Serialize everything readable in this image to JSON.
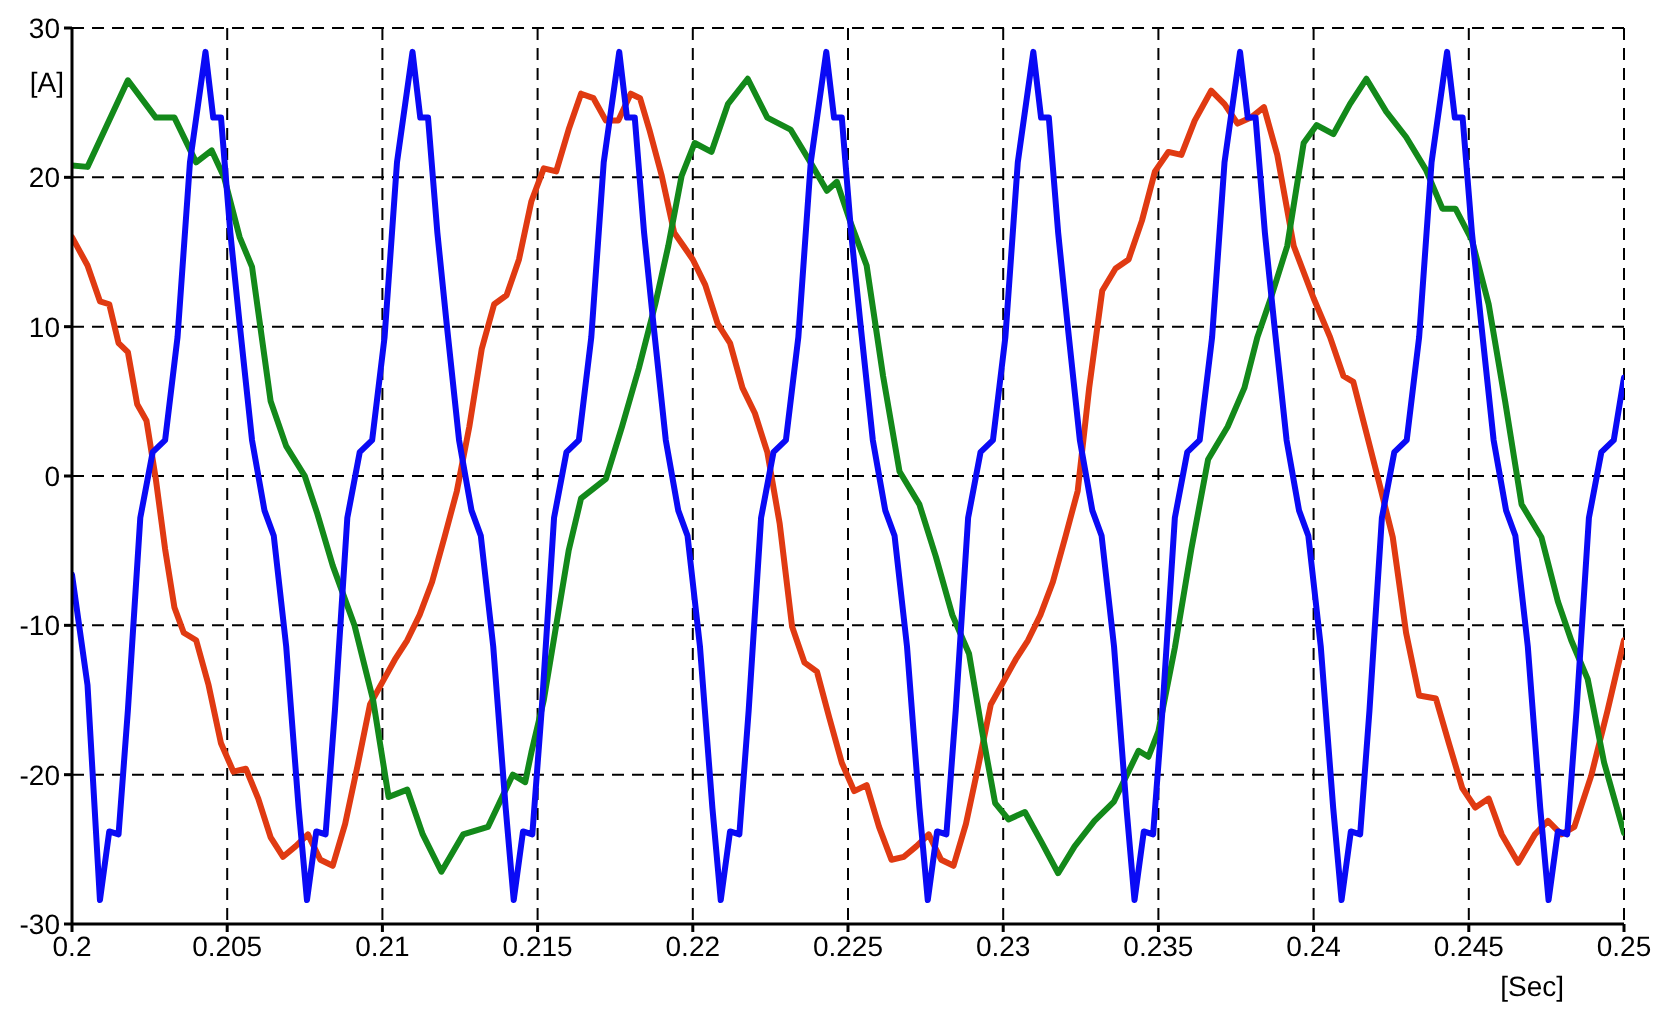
{
  "chart_data": {
    "type": "line",
    "xlabel": "[Sec]",
    "ylabel": "[A]",
    "xlim": [
      0.2,
      0.25
    ],
    "xticks": [
      0.2,
      0.205,
      0.21,
      0.215,
      0.22,
      0.225,
      0.23,
      0.235,
      0.24,
      0.245,
      0.25
    ],
    "ylim": [
      -30,
      30
    ],
    "yticks": [
      -30,
      -20,
      -10,
      0,
      10,
      20,
      30
    ],
    "grid": true,
    "legend": false,
    "marker": "none",
    "line_style": "solid",
    "series": [
      {
        "color": "#e03a12",
        "x": [
          0.2,
          0.2005,
          0.2009,
          0.2012,
          0.2015,
          0.2018,
          0.2021,
          0.2024,
          0.2027,
          0.203,
          0.2033,
          0.2036,
          0.204,
          0.2044,
          0.2048,
          0.2052,
          0.2056,
          0.206,
          0.2064,
          0.2068,
          0.2072,
          0.2076,
          0.208,
          0.2084,
          0.2088,
          0.2092,
          0.2096,
          0.21,
          0.2104,
          0.2108,
          0.2112,
          0.2116,
          0.212,
          0.2124,
          0.2128,
          0.2132,
          0.2136,
          0.214,
          0.2144,
          0.2148,
          0.2152,
          0.2156,
          0.216,
          0.2164,
          0.2168,
          0.2172,
          0.2176,
          0.218,
          0.2183,
          0.2186,
          0.219,
          0.2194,
          0.2197,
          0.22,
          0.2204,
          0.2208,
          0.2212,
          0.2216,
          0.222,
          0.2224,
          0.2228,
          0.2232,
          0.2236,
          0.224,
          0.2244,
          0.2248,
          0.2252,
          0.2256,
          0.226,
          0.2264,
          0.2268,
          0.2272,
          0.2276,
          0.228,
          0.2284,
          0.2288,
          0.2292,
          0.2296,
          0.23,
          0.2304,
          0.2308,
          0.2312,
          0.2316,
          0.232,
          0.2324,
          0.23277,
          0.23319,
          0.23362,
          0.23404,
          0.23447,
          0.23489,
          0.23532,
          0.23574,
          0.23617,
          0.2367,
          0.23713,
          0.23755,
          0.23798,
          0.2384,
          0.23883,
          0.23936,
          0.24,
          0.24053,
          0.24096,
          0.24128,
          0.2417,
          0.24213,
          0.24255,
          0.24298,
          0.2434,
          0.24394,
          0.24436,
          0.24479,
          0.24521,
          0.24564,
          0.24606,
          0.24659,
          0.24713,
          0.24755,
          0.24798,
          0.2484,
          0.24894,
          0.24947,
          0.25
        ],
        "values": [
          16,
          14.1,
          11.7,
          11.5,
          8.9,
          8.3,
          4.8,
          3.7,
          -0.2,
          -4.9,
          -8.8,
          -10.5,
          -11,
          -14,
          -17.9,
          -19.8,
          -19.6,
          -21.6,
          -24.2,
          -25.5,
          -24.8,
          -24,
          -25.7,
          -26.1,
          -23.3,
          -19.4,
          -15.3,
          -13.8,
          -12.3,
          -11,
          -9.3,
          -7.1,
          -4.1,
          -1,
          3.3,
          8.5,
          11.5,
          12.1,
          14.5,
          18.4,
          20.6,
          20.4,
          23.2,
          25.6,
          25.3,
          23.8,
          23.8,
          25.6,
          25.3,
          23.2,
          20.1,
          16.3,
          15.4,
          14.5,
          12.8,
          10.2,
          8.9,
          5.9,
          4.2,
          1.6,
          -3.2,
          -10.1,
          -12.5,
          -13.1,
          -16.2,
          -19.2,
          -21.1,
          -20.7,
          -23.5,
          -25.7,
          -25.5,
          -24.8,
          -24,
          -25.7,
          -26.1,
          -23.3,
          -19.4,
          -15.3,
          -13.8,
          -12.3,
          -11,
          -9.3,
          -7.1,
          -4.1,
          -1,
          5.9,
          12.4,
          13.9,
          14.5,
          17.1,
          20.4,
          21.7,
          21.5,
          23.8,
          25.8,
          24.9,
          23.6,
          24,
          24.7,
          21.5,
          15.4,
          11.9,
          9.3,
          6.7,
          6.3,
          2.9,
          -0.6,
          -4.1,
          -10.5,
          -14.7,
          -14.9,
          -17.9,
          -20.9,
          -22.2,
          -21.6,
          -24,
          -25.9,
          -24,
          -23.1,
          -24,
          -23.5,
          -20.1,
          -15.7,
          -11
        ]
      },
      {
        "color": "#13891a",
        "x": [
          0.2,
          0.2005,
          0.2018,
          0.2027,
          0.2033,
          0.204,
          0.2045,
          0.2049,
          0.2054,
          0.2058,
          0.2062,
          0.2064,
          0.2069,
          0.2075,
          0.2079,
          0.2084,
          0.2091,
          0.2097,
          0.2102,
          0.2108,
          0.2113,
          0.2119,
          0.2126,
          0.2134,
          0.2142,
          0.2146,
          0.2148,
          0.2152,
          0.2156,
          0.216,
          0.2164,
          0.2172,
          0.21772,
          0.21826,
          0.21879,
          0.21921,
          0.21964,
          0.22006,
          0.2206,
          0.22113,
          0.22177,
          0.2224,
          0.22315,
          0.22379,
          0.22432,
          0.22464,
          0.22506,
          0.2256,
          0.22613,
          0.22666,
          0.2273,
          0.22783,
          0.22836,
          0.2289,
          0.22932,
          0.22974,
          0.23017,
          0.2307,
          0.23123,
          0.23177,
          0.2323,
          0.23294,
          0.23357,
          0.23436,
          0.23468,
          0.235,
          0.23553,
          0.23606,
          0.2366,
          0.23723,
          0.23777,
          0.23819,
          0.23862,
          0.23915,
          0.23968,
          0.2401,
          0.24064,
          0.24117,
          0.2417,
          0.24234,
          0.24298,
          0.24362,
          0.24415,
          0.24457,
          0.2451,
          0.24564,
          0.24617,
          0.2467,
          0.24734,
          0.24787,
          0.2483,
          0.24883,
          0.24936,
          0.25
        ],
        "values": [
          20.8,
          20.7,
          26.5,
          24,
          24,
          21,
          21.8,
          20,
          16,
          14,
          8,
          5,
          2,
          0,
          -2.5,
          -6,
          -10,
          -15,
          -21.5,
          -21,
          -24,
          -26.5,
          -24,
          -23.5,
          -20,
          -20.5,
          -18.5,
          -15,
          -10,
          -5,
          -1.5,
          -0.2,
          3.3,
          7.2,
          11.5,
          15.4,
          20.1,
          22.3,
          21.7,
          24.9,
          26.6,
          24,
          23.2,
          21,
          19.1,
          19.7,
          17.1,
          14.1,
          6.7,
          0.3,
          -1.9,
          -5.4,
          -9.3,
          -11.9,
          -17.1,
          -21.9,
          -23,
          -22.5,
          -24.5,
          -26.6,
          -24.8,
          -23.1,
          -21.8,
          -18.4,
          -18.8,
          -17.1,
          -11.5,
          -4.9,
          1.1,
          3.3,
          5.9,
          9.3,
          11.9,
          15.4,
          22.3,
          23.5,
          22.9,
          24.9,
          26.6,
          24.4,
          22.7,
          20.5,
          17.9,
          17.9,
          15.8,
          11.5,
          5,
          -1.9,
          -4.1,
          -8.4,
          -11,
          -13.6,
          -19.2,
          -23.9
        ]
      },
      {
        "color": "#0a0af5",
        "x": [
          0.2,
          0.2005,
          0.2009,
          0.2012,
          0.2015,
          0.2018,
          0.2022,
          0.2026,
          0.203,
          0.2034,
          0.2038,
          0.2043,
          0.20455,
          0.2048,
          0.2051,
          0.2054,
          0.2058,
          0.2062,
          0.2065,
          0.2069,
          0.2073,
          0.20757,
          0.20787,
          0.20817,
          0.20847,
          0.20887,
          0.20927,
          0.20967,
          0.21007,
          0.21047,
          0.21097,
          0.21122,
          0.21147,
          0.21177,
          0.21207,
          0.21247,
          0.21287,
          0.21317,
          0.21357,
          0.21397,
          0.21423,
          0.21453,
          0.21483,
          0.21513,
          0.21553,
          0.21593,
          0.21633,
          0.21673,
          0.21713,
          0.21763,
          0.21788,
          0.21813,
          0.21843,
          0.21873,
          0.21913,
          0.21953,
          0.21983,
          0.22023,
          0.22063,
          0.2209,
          0.2212,
          0.2215,
          0.2218,
          0.2222,
          0.2226,
          0.223,
          0.2234,
          0.2238,
          0.2243,
          0.22455,
          0.2248,
          0.2251,
          0.2254,
          0.2258,
          0.2262,
          0.2265,
          0.2269,
          0.2273,
          0.22757,
          0.22787,
          0.22817,
          0.22847,
          0.22887,
          0.22927,
          0.22967,
          0.23007,
          0.23047,
          0.23097,
          0.23122,
          0.23147,
          0.23177,
          0.23207,
          0.23247,
          0.23287,
          0.23317,
          0.23357,
          0.23397,
          0.23423,
          0.23453,
          0.23483,
          0.23513,
          0.23553,
          0.23593,
          0.23633,
          0.23673,
          0.23713,
          0.23763,
          0.23788,
          0.23813,
          0.23843,
          0.23873,
          0.23913,
          0.23953,
          0.23983,
          0.24023,
          0.24063,
          0.2409,
          0.2412,
          0.2415,
          0.2418,
          0.2422,
          0.2426,
          0.243,
          0.2434,
          0.2438,
          0.2443,
          0.24455,
          0.2448,
          0.2451,
          0.2454,
          0.2458,
          0.2462,
          0.2465,
          0.2469,
          0.2473,
          0.24757,
          0.24787,
          0.24817,
          0.24847,
          0.24887,
          0.24927,
          0.24967,
          0.25
        ],
        "values": [
          -6.6,
          -14,
          -28.4,
          -23.8,
          -24,
          -15.7,
          -2.8,
          1.6,
          2.4,
          9.3,
          21,
          28.4,
          24,
          24,
          16.3,
          10.2,
          2.4,
          -2.3,
          -4,
          -11.4,
          -22.2,
          -28.4,
          -23.8,
          -24,
          -15.7,
          -2.8,
          1.6,
          2.4,
          9.3,
          21,
          28.4,
          24,
          24,
          16.3,
          10.2,
          2.4,
          -2.3,
          -4,
          -11.4,
          -22.2,
          -28.4,
          -23.8,
          -24,
          -15.7,
          -2.8,
          1.6,
          2.4,
          9.3,
          21,
          28.4,
          24,
          24,
          16.3,
          10.2,
          2.4,
          -2.3,
          -4,
          -11.4,
          -22.2,
          -28.4,
          -23.8,
          -24,
          -15.7,
          -2.8,
          1.6,
          2.4,
          9.3,
          21,
          28.4,
          24,
          24,
          16.3,
          10.2,
          2.4,
          -2.3,
          -4,
          -11.4,
          -22.2,
          -28.4,
          -23.8,
          -24,
          -15.7,
          -2.8,
          1.6,
          2.4,
          9.3,
          21,
          28.4,
          24,
          24,
          16.3,
          10.2,
          2.4,
          -2.3,
          -4,
          -11.4,
          -22.2,
          -28.4,
          -23.8,
          -24,
          -15.7,
          -2.8,
          1.6,
          2.4,
          9.3,
          21,
          28.4,
          24,
          24,
          16.3,
          10.2,
          2.4,
          -2.3,
          -4,
          -11.4,
          -22.2,
          -28.4,
          -23.8,
          -24,
          -15.7,
          -2.8,
          1.6,
          2.4,
          9.3,
          21,
          28.4,
          24,
          24,
          16.3,
          10.2,
          2.4,
          -2.3,
          -4,
          -11.4,
          -22.2,
          -28.4,
          -23.8,
          -24,
          -15.7,
          -2.8,
          1.6,
          2.4,
          6.6
        ]
      }
    ]
  }
}
